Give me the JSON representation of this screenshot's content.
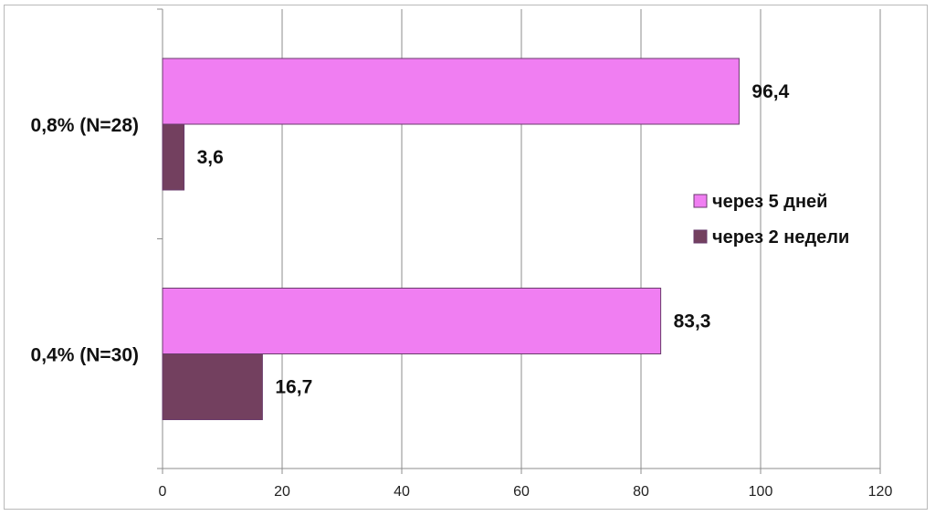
{
  "chart_data": {
    "type": "bar",
    "orientation": "horizontal",
    "categories": [
      "0,8% (N=28)",
      "0,4% (N=30)"
    ],
    "series": [
      {
        "name": "через 5 дней",
        "values": [
          96.4,
          83.3
        ],
        "labels": [
          "96,4",
          "83,3"
        ],
        "color": "#f07ef2"
      },
      {
        "name": "через 2 недели",
        "values": [
          3.6,
          16.7
        ],
        "labels": [
          "3,6",
          "16,7"
        ],
        "color": "#73405f"
      }
    ],
    "xlim": [
      0,
      120
    ],
    "xticks": [
      0,
      20,
      40,
      60,
      80,
      100,
      120
    ],
    "grid": true,
    "legend_position": "right",
    "title": "",
    "xlabel": "",
    "ylabel": ""
  }
}
